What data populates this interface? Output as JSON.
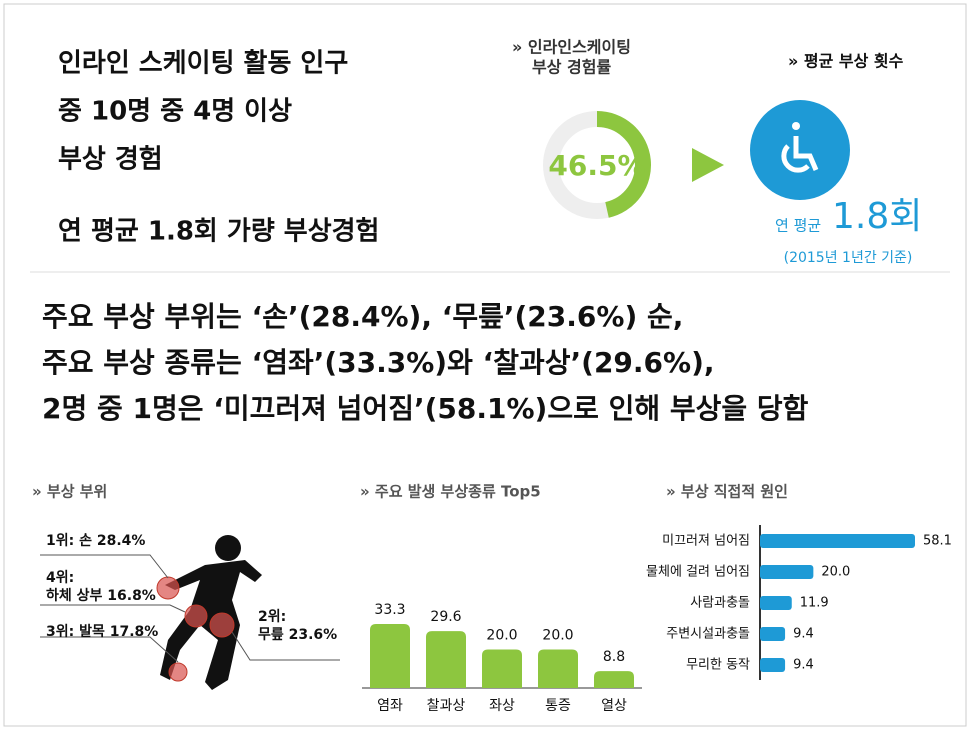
{
  "headline": {
    "lines": [
      "인라인 스케이팅 활동 인구",
      "중 10명 중 4명 이상",
      "부상 경험"
    ],
    "summary": "연 평균 1.8회 가량 부상경험"
  },
  "findings": [
    "주요 부상 부위는 ‘손’(28.4%), ‘무릎’(23.6%) 순,",
    "주요 부상 종류는 ‘염좌’(33.3%)와 ‘찰과상’(29.6%),",
    "2명 중 1명은 ‘미끄러져 넘어짐’(58.1%)으로 인해 부상을 당함"
  ],
  "average": {
    "title": "» 평균 부상 횟수",
    "prefix": "연 평균",
    "value_label": "1.8회",
    "note": "(2015년 1년간 기준)"
  },
  "body_parts": {
    "title": "» 부상 부위",
    "labels": [
      [
        "1위: 손 28.4%"
      ],
      [
        "4위:",
        "하체 상부 16.8%"
      ],
      [
        "3위: 발목 17.8%"
      ],
      [
        "2위:",
        "무릎 23.6%"
      ]
    ]
  },
  "chart_data": [
    {
      "type": "pie",
      "title": [
        "» 인라인스케이팅",
        "부상 경험률"
      ],
      "values": [
        46.5
      ],
      "value_labels": [
        "46.5%"
      ],
      "color": "#8dc63f"
    },
    {
      "type": "bar",
      "title": "» 주요 발생 부상종류 Top5",
      "categories": [
        "염좌",
        "찰과상",
        "좌상",
        "통증",
        "열상"
      ],
      "values": [
        33.3,
        29.6,
        20.0,
        20.0,
        8.8
      ],
      "value_labels": [
        "33.3",
        "29.6",
        "20.0",
        "20.0",
        "8.8"
      ],
      "color": "#8dc63f"
    },
    {
      "type": "barh",
      "title": "» 부상 직접적 원인",
      "categories": [
        "미끄러져 넘어짐",
        "물체에 걸려 넘어짐",
        "사람과충돌",
        "주변시설과충돌",
        "무리한 동작"
      ],
      "values": [
        58.1,
        20.0,
        11.9,
        9.4,
        9.4
      ],
      "value_labels": [
        "58.1",
        "20.0",
        "11.9",
        "9.4",
        "9.4"
      ],
      "color": "#1e9ad6"
    }
  ]
}
